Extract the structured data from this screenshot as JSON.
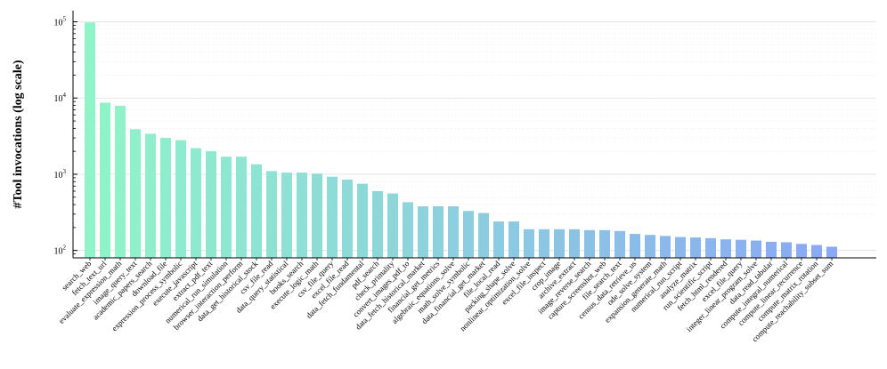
{
  "chart_data": {
    "type": "bar",
    "title": "",
    "xlabel": "",
    "ylabel": "#Tool invocations (log scale)",
    "yscale": "log",
    "ylim": [
      80,
      140000
    ],
    "yticks": [
      {
        "value": 100,
        "base": "10",
        "exp": "2"
      },
      {
        "value": 1000,
        "base": "10",
        "exp": "3"
      },
      {
        "value": 10000,
        "base": "10",
        "exp": "4"
      },
      {
        "value": 100000,
        "base": "10",
        "exp": "5"
      }
    ],
    "grid": "horizontal, light dotted",
    "gradient_start": "#8ff5c8",
    "gradient_end": "#8aa8f5",
    "categories": [
      "search_web",
      "fetch_text_url",
      "evaluate_expression_math",
      "image_query_text",
      "academic_papers_search",
      "download_file",
      "expression_process_symbolic",
      "execute_javascript",
      "extract_pdf_text",
      "numerical_run_simulation",
      "browser_interaction_perform",
      "data_get_historical_stock",
      "csv_file_read",
      "data_query_statistical",
      "books_search",
      "execute_logic_math",
      "csv_file_query",
      "excel_file_read",
      "data_fetch_fundamental",
      "pdf_search",
      "check_primality",
      "convert_images_pdf_to",
      "data_fetch_historical_market",
      "financial_get_metrics",
      "algebraic_equations_solve",
      "math_solve_symbolic",
      "data_financial_get_market",
      "file_local_read",
      "packing_shape_solve",
      "nonlinear_optimization_solve",
      "excel_file_inspect",
      "crop_image",
      "archive_extract",
      "image_reverse_search",
      "capture_screenshot_web",
      "file_search_text",
      "census_data_retrieve_us",
      "ode_solve_system",
      "expansion_generate_math",
      "numerical_run_script",
      "analyze_matrix",
      "run_scientific_script",
      "fetch_html_rendered",
      "excel_file_query",
      "integer_linear_program_solve",
      "data_read_tabular",
      "compute_integral_numerical",
      "compute_linear_recurrence",
      "compute_matrix_rotation",
      "compute_reachability_subset_sum"
    ],
    "values": [
      98000,
      8700,
      7900,
      3900,
      3400,
      3000,
      2800,
      2200,
      2000,
      1700,
      1700,
      1350,
      1100,
      1050,
      1050,
      1020,
      930,
      850,
      750,
      600,
      560,
      430,
      380,
      380,
      380,
      330,
      310,
      240,
      240,
      190,
      190,
      190,
      190,
      185,
      185,
      180,
      165,
      160,
      155,
      150,
      148,
      145,
      140,
      138,
      135,
      130,
      128,
      122,
      118,
      112
    ]
  }
}
